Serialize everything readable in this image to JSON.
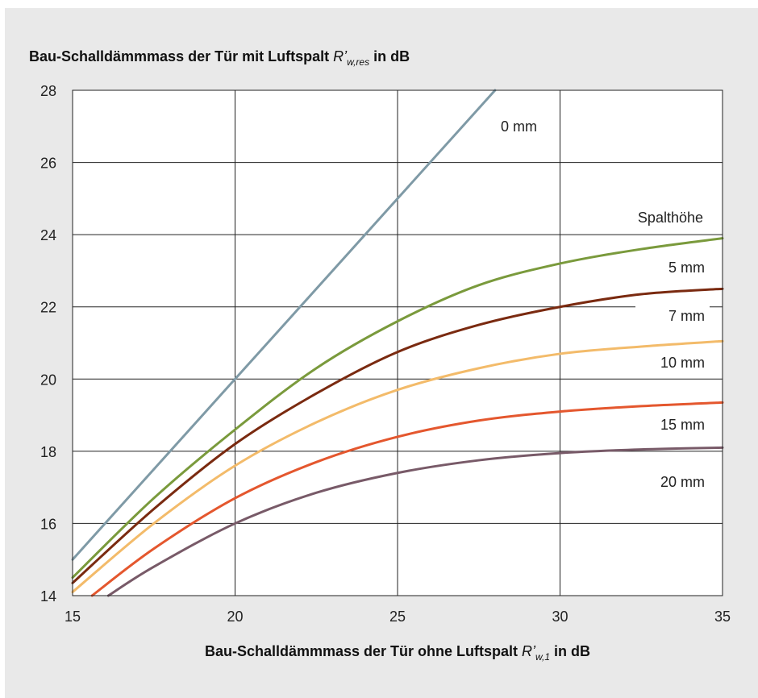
{
  "chart_data": {
    "type": "line",
    "title_prefix": "Bau-Schalldämmmass der Tür mit Luftspalt ",
    "title_symbol": "R’",
    "title_subscript": "w,res",
    "title_suffix": " in dB",
    "xlabel_prefix": "Bau-Schalldämmmass  der Tür ohne Luftspalt ",
    "xlabel_symbol": "R’",
    "xlabel_subscript": "w,1",
    "xlabel_suffix": " in dB",
    "xlim": [
      15,
      35
    ],
    "ylim": [
      14,
      28
    ],
    "x_ticks": [
      "15",
      "20",
      "25",
      "30",
      "35"
    ],
    "y_ticks": [
      "14",
      "16",
      "18",
      "20",
      "22",
      "24",
      "26",
      "28"
    ],
    "grid": true,
    "legend_header": "Spalthöhe",
    "series": [
      {
        "name": "0 mm",
        "color": "#7f9aa6",
        "x": [
          15,
          20,
          25,
          28
        ],
        "y": [
          15,
          20,
          25,
          28
        ]
      },
      {
        "name": "5 mm",
        "color": "#7a9a3c",
        "x": [
          15,
          17.5,
          20,
          22.5,
          25,
          27.5,
          30,
          32.5,
          35
        ],
        "y": [
          14.5,
          16.7,
          18.6,
          20.3,
          21.6,
          22.6,
          23.2,
          23.6,
          23.9
        ]
      },
      {
        "name": "7 mm",
        "color": "#7a2a10",
        "x": [
          15,
          17.5,
          20,
          22.5,
          25,
          27.5,
          30,
          32.5,
          35
        ],
        "y": [
          14.35,
          16.4,
          18.2,
          19.6,
          20.75,
          21.5,
          22.0,
          22.35,
          22.5
        ]
      },
      {
        "name": "10 mm",
        "color": "#f3bb6a",
        "x": [
          15,
          17.5,
          20,
          22.5,
          25,
          27.5,
          30,
          32.5,
          35
        ],
        "y": [
          14.1,
          16.0,
          17.6,
          18.8,
          19.7,
          20.3,
          20.7,
          20.9,
          21.05
        ]
      },
      {
        "name": "15 mm",
        "color": "#e4572e",
        "x": [
          15.6,
          17.5,
          20,
          22.5,
          25,
          27.5,
          30,
          32.5,
          35
        ],
        "y": [
          14,
          15.3,
          16.7,
          17.7,
          18.4,
          18.85,
          19.1,
          19.25,
          19.35
        ]
      },
      {
        "name": "20 mm",
        "color": "#785a68",
        "x": [
          16.1,
          17.5,
          20,
          22.5,
          25,
          27.5,
          30,
          32.5,
          35
        ],
        "y": [
          14,
          14.8,
          16.0,
          16.85,
          17.4,
          17.75,
          17.95,
          18.05,
          18.1
        ]
      }
    ]
  }
}
